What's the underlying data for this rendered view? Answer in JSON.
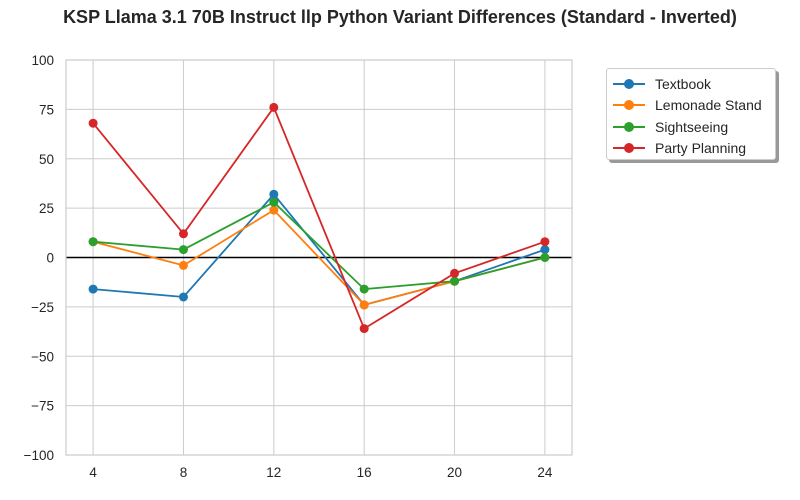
{
  "title": "KSP Llama 3.1 70B Instruct llp Python Variant Differences (Standard - Inverted)",
  "chart_data": {
    "type": "line",
    "title": "KSP Llama 3.1 70B Instruct llp Python Variant Differences (Standard - Inverted)",
    "xlabel": "",
    "ylabel": "",
    "x": [
      4,
      8,
      12,
      16,
      20,
      24
    ],
    "xticks": [
      "4",
      "8",
      "12",
      "16",
      "20",
      "24"
    ],
    "yticks": [
      "100",
      "75",
      "50",
      "25",
      "0",
      "−25",
      "−50",
      "−75",
      "−100"
    ],
    "ylim": [
      -100,
      100
    ],
    "grid": true,
    "zero_line": true,
    "legend_position": "outside upper right",
    "series": [
      {
        "name": "Textbook",
        "color": "#1f77b4",
        "values": [
          -16,
          -20,
          32,
          -24,
          -12,
          4
        ]
      },
      {
        "name": "Lemonade Stand",
        "color": "#ff7f0e",
        "values": [
          8,
          -4,
          24,
          -24,
          -12,
          0
        ]
      },
      {
        "name": "Sightseeing",
        "color": "#2ca02c",
        "values": [
          8,
          4,
          28,
          -16,
          -12,
          0
        ]
      },
      {
        "name": "Party Planning",
        "color": "#d62728",
        "values": [
          68,
          12,
          76,
          -36,
          -8,
          8
        ]
      }
    ]
  }
}
